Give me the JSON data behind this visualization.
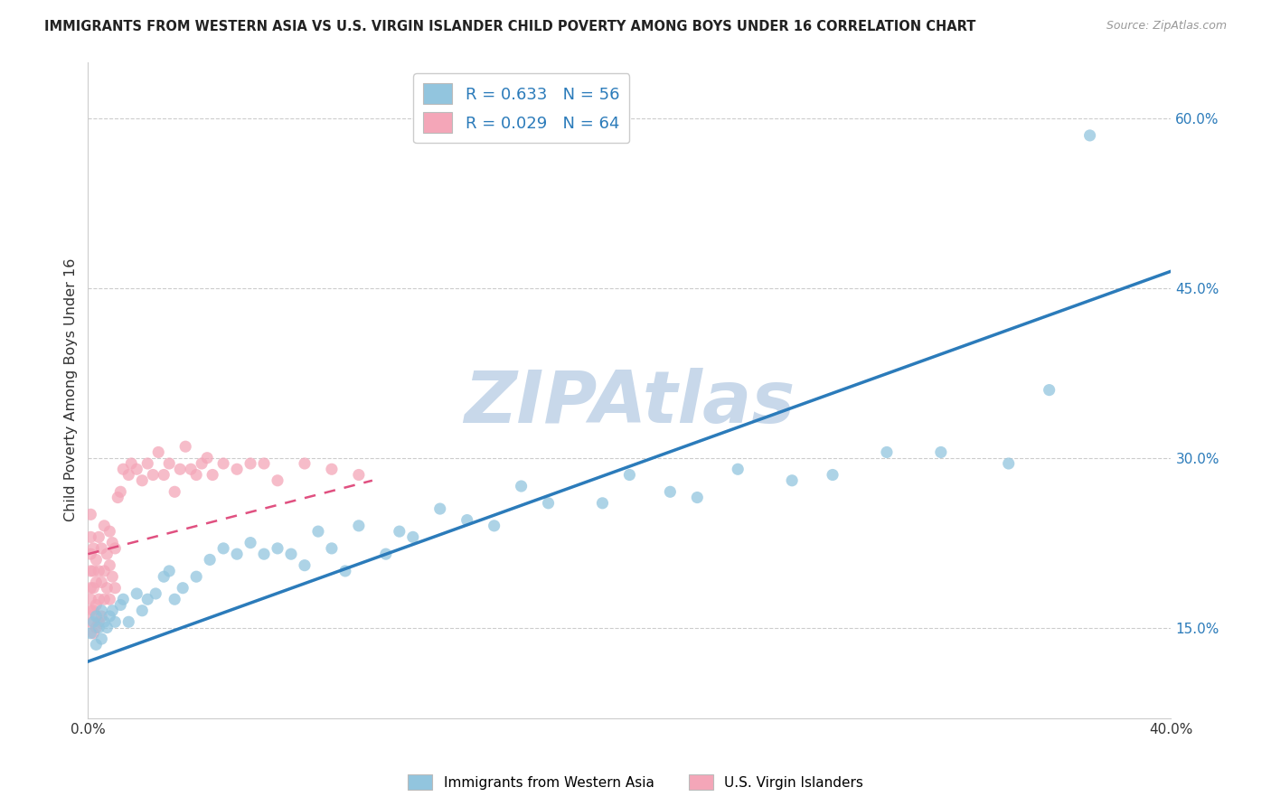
{
  "title": "IMMIGRANTS FROM WESTERN ASIA VS U.S. VIRGIN ISLANDER CHILD POVERTY AMONG BOYS UNDER 16 CORRELATION CHART",
  "source": "Source: ZipAtlas.com",
  "ylabel": "Child Poverty Among Boys Under 16",
  "x_min": 0.0,
  "x_max": 0.4,
  "y_min": 0.07,
  "y_max": 0.65,
  "y_ticks_right": [
    0.15,
    0.3,
    0.45,
    0.6
  ],
  "blue_R": 0.633,
  "blue_N": 56,
  "pink_R": 0.029,
  "pink_N": 64,
  "blue_color": "#92c5de",
  "pink_color": "#f4a6b8",
  "blue_line_color": "#2b7bba",
  "pink_line_color": "#e05080",
  "watermark": "ZIPAtlas",
  "watermark_color": "#c8d8ea",
  "legend_label_blue": "Immigrants from Western Asia",
  "legend_label_pink": "U.S. Virgin Islanders",
  "blue_scatter_x": [
    0.001,
    0.002,
    0.003,
    0.003,
    0.004,
    0.005,
    0.005,
    0.006,
    0.007,
    0.008,
    0.009,
    0.01,
    0.012,
    0.013,
    0.015,
    0.018,
    0.02,
    0.022,
    0.025,
    0.028,
    0.03,
    0.032,
    0.035,
    0.04,
    0.045,
    0.05,
    0.055,
    0.06,
    0.065,
    0.07,
    0.075,
    0.08,
    0.085,
    0.09,
    0.095,
    0.1,
    0.11,
    0.115,
    0.12,
    0.13,
    0.14,
    0.15,
    0.16,
    0.17,
    0.19,
    0.2,
    0.215,
    0.225,
    0.24,
    0.26,
    0.275,
    0.295,
    0.315,
    0.34,
    0.355,
    0.37
  ],
  "blue_scatter_y": [
    0.145,
    0.155,
    0.135,
    0.16,
    0.15,
    0.14,
    0.165,
    0.155,
    0.15,
    0.16,
    0.165,
    0.155,
    0.17,
    0.175,
    0.155,
    0.18,
    0.165,
    0.175,
    0.18,
    0.195,
    0.2,
    0.175,
    0.185,
    0.195,
    0.21,
    0.22,
    0.215,
    0.225,
    0.215,
    0.22,
    0.215,
    0.205,
    0.235,
    0.22,
    0.2,
    0.24,
    0.215,
    0.235,
    0.23,
    0.255,
    0.245,
    0.24,
    0.275,
    0.26,
    0.26,
    0.285,
    0.27,
    0.265,
    0.29,
    0.28,
    0.285,
    0.305,
    0.305,
    0.295,
    0.36,
    0.585
  ],
  "pink_scatter_x": [
    0.001,
    0.001,
    0.001,
    0.001,
    0.001,
    0.001,
    0.001,
    0.001,
    0.002,
    0.002,
    0.002,
    0.002,
    0.002,
    0.003,
    0.003,
    0.003,
    0.003,
    0.004,
    0.004,
    0.004,
    0.004,
    0.005,
    0.005,
    0.005,
    0.006,
    0.006,
    0.006,
    0.007,
    0.007,
    0.008,
    0.008,
    0.008,
    0.009,
    0.009,
    0.01,
    0.01,
    0.011,
    0.012,
    0.013,
    0.015,
    0.016,
    0.018,
    0.02,
    0.022,
    0.024,
    0.026,
    0.028,
    0.03,
    0.032,
    0.034,
    0.036,
    0.038,
    0.04,
    0.042,
    0.044,
    0.046,
    0.05,
    0.055,
    0.06,
    0.065,
    0.07,
    0.08,
    0.09,
    0.1
  ],
  "pink_scatter_y": [
    0.155,
    0.165,
    0.175,
    0.185,
    0.2,
    0.215,
    0.23,
    0.25,
    0.145,
    0.165,
    0.185,
    0.2,
    0.22,
    0.15,
    0.17,
    0.19,
    0.21,
    0.155,
    0.175,
    0.2,
    0.23,
    0.16,
    0.19,
    0.22,
    0.175,
    0.2,
    0.24,
    0.185,
    0.215,
    0.175,
    0.205,
    0.235,
    0.195,
    0.225,
    0.185,
    0.22,
    0.265,
    0.27,
    0.29,
    0.285,
    0.295,
    0.29,
    0.28,
    0.295,
    0.285,
    0.305,
    0.285,
    0.295,
    0.27,
    0.29,
    0.31,
    0.29,
    0.285,
    0.295,
    0.3,
    0.285,
    0.295,
    0.29,
    0.295,
    0.295,
    0.28,
    0.295,
    0.29,
    0.285
  ],
  "blue_trend_x": [
    0.0,
    0.4
  ],
  "blue_trend_y": [
    0.12,
    0.465
  ],
  "pink_trend_x": [
    0.0,
    0.105
  ],
  "pink_trend_y": [
    0.215,
    0.28
  ]
}
